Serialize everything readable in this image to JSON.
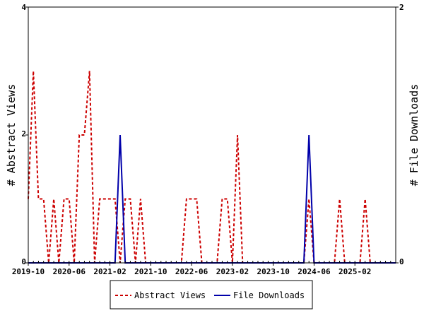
{
  "chart_data": {
    "type": "line",
    "title": "",
    "xlabel": "",
    "ylabel_left": "# Abstract Views",
    "ylabel_right": "# File Downloads",
    "x_tick_labels": [
      "2019-10",
      "2020-06",
      "2021-02",
      "2021-10",
      "2022-06",
      "2023-02",
      "2023-10",
      "2024-06",
      "2025-02"
    ],
    "ylim_left": [
      0,
      4
    ],
    "ylim_right": [
      0,
      2
    ],
    "y_ticks_left": [
      "0",
      "2",
      "4"
    ],
    "y_ticks_right": [
      "0",
      "2"
    ],
    "x_start": "2019-10",
    "x_end": "2025-10",
    "grid": false,
    "legend_placement": "bottom",
    "series": [
      {
        "name": "Abstract Views",
        "axis": "left",
        "color": "#cc0000",
        "style": "dashed",
        "points": [
          [
            "2019-10",
            1
          ],
          [
            "2019-11",
            3
          ],
          [
            "2019-12",
            1
          ],
          [
            "2020-01",
            1
          ],
          [
            "2020-02",
            0
          ],
          [
            "2020-03",
            1
          ],
          [
            "2020-04",
            0
          ],
          [
            "2020-05",
            1
          ],
          [
            "2020-06",
            1
          ],
          [
            "2020-07",
            0
          ],
          [
            "2020-08",
            2
          ],
          [
            "2020-09",
            2
          ],
          [
            "2020-10",
            3
          ],
          [
            "2020-11",
            0
          ],
          [
            "2020-12",
            1
          ],
          [
            "2021-01",
            1
          ],
          [
            "2021-02",
            1
          ],
          [
            "2021-03",
            1
          ],
          [
            "2021-04",
            0
          ],
          [
            "2021-05",
            1
          ],
          [
            "2021-06",
            1
          ],
          [
            "2021-07",
            0
          ],
          [
            "2021-08",
            1
          ],
          [
            "2021-09",
            0
          ],
          [
            "2021-10",
            0
          ],
          [
            "2021-11",
            0
          ],
          [
            "2021-12",
            0
          ],
          [
            "2022-01",
            0
          ],
          [
            "2022-02",
            0
          ],
          [
            "2022-03",
            0
          ],
          [
            "2022-04",
            0
          ],
          [
            "2022-05",
            1
          ],
          [
            "2022-06",
            1
          ],
          [
            "2022-07",
            1
          ],
          [
            "2022-08",
            0
          ],
          [
            "2022-09",
            0
          ],
          [
            "2022-10",
            0
          ],
          [
            "2022-11",
            0
          ],
          [
            "2022-12",
            1
          ],
          [
            "2023-01",
            1
          ],
          [
            "2023-02",
            0
          ],
          [
            "2023-03",
            2
          ],
          [
            "2023-04",
            0
          ],
          [
            "2023-05",
            0
          ],
          [
            "2023-06",
            0
          ],
          [
            "2023-07",
            0
          ],
          [
            "2023-08",
            0
          ],
          [
            "2023-09",
            0
          ],
          [
            "2023-10",
            0
          ],
          [
            "2023-11",
            0
          ],
          [
            "2023-12",
            0
          ],
          [
            "2024-01",
            0
          ],
          [
            "2024-02",
            0
          ],
          [
            "2024-03",
            0
          ],
          [
            "2024-04",
            0
          ],
          [
            "2024-05",
            1
          ],
          [
            "2024-06",
            0
          ],
          [
            "2024-07",
            0
          ],
          [
            "2024-08",
            0
          ],
          [
            "2024-09",
            0
          ],
          [
            "2024-10",
            0
          ],
          [
            "2024-11",
            1
          ],
          [
            "2024-12",
            0
          ],
          [
            "2025-01",
            0
          ],
          [
            "2025-02",
            0
          ],
          [
            "2025-03",
            0
          ],
          [
            "2025-04",
            1
          ],
          [
            "2025-05",
            0
          ],
          [
            "2025-06",
            0
          ],
          [
            "2025-07",
            0
          ],
          [
            "2025-08",
            0
          ],
          [
            "2025-09",
            0
          ],
          [
            "2025-10",
            0
          ]
        ]
      },
      {
        "name": "File Downloads",
        "axis": "right",
        "color": "#0000aa",
        "style": "solid",
        "points": [
          [
            "2019-10",
            0
          ],
          [
            "2021-03",
            0
          ],
          [
            "2021-04",
            1
          ],
          [
            "2021-05",
            0
          ],
          [
            "2024-04",
            0
          ],
          [
            "2024-05",
            1
          ],
          [
            "2024-06",
            0
          ],
          [
            "2025-10",
            0
          ]
        ]
      }
    ]
  }
}
